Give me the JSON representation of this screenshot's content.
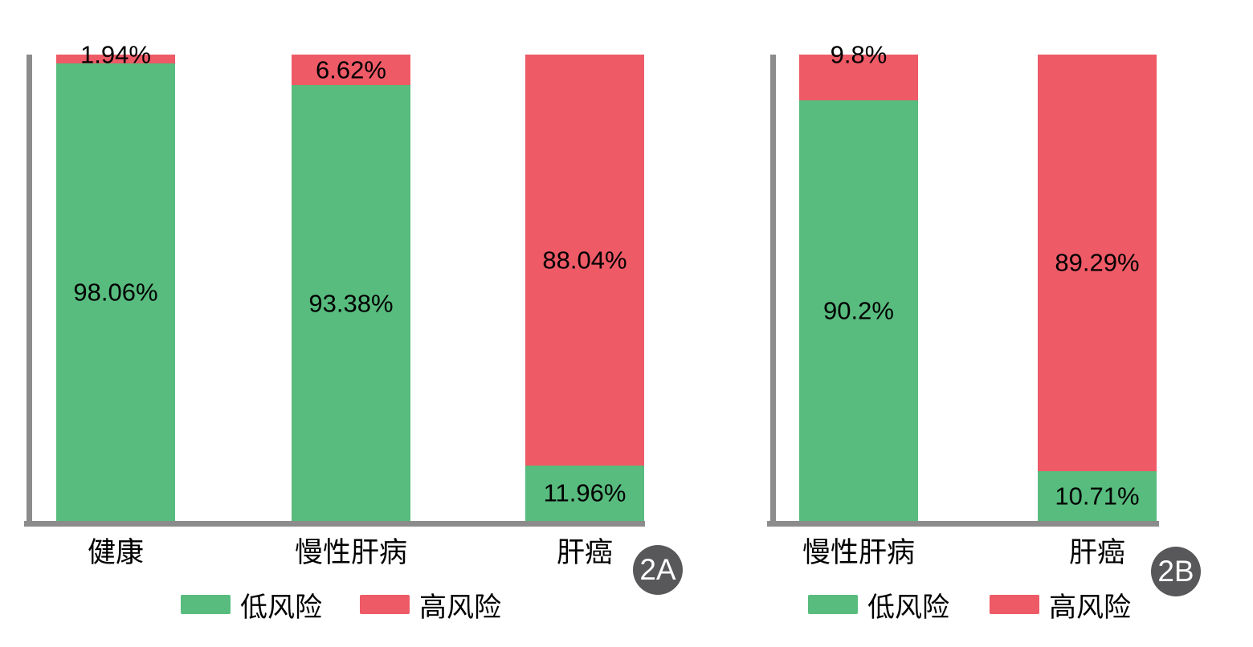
{
  "colors": {
    "low_risk": "#58bc7e",
    "high_risk": "#ee5a66",
    "axis": "#8c8c8c",
    "badge": "#58585a",
    "label_text": "#000000",
    "badge_text": "#ffffff"
  },
  "charts": [
    {
      "panel_label": "2A",
      "categories": [
        "健康",
        "慢性肝病",
        "肝癌"
      ],
      "legend": [
        {
          "label": "低风险",
          "color": "#58bc7e"
        },
        {
          "label": "高风险",
          "color": "#ee5a66"
        }
      ],
      "bars": [
        {
          "category": "健康",
          "segments": [
            {
              "series": "高风险",
              "value": 1.94,
              "label": "1.94%",
              "label_pos": "edge-top"
            },
            {
              "series": "低风险",
              "value": 98.06,
              "label": "98.06%",
              "label_pos": "center"
            }
          ]
        },
        {
          "category": "慢性肝病",
          "segments": [
            {
              "series": "高风险",
              "value": 6.62,
              "label": "6.62%",
              "label_pos": "center"
            },
            {
              "series": "低风险",
              "value": 93.38,
              "label": "93.38%",
              "label_pos": "center"
            }
          ]
        },
        {
          "category": "肝癌",
          "segments": [
            {
              "series": "高风险",
              "value": 88.04,
              "label": "88.04%",
              "label_pos": "center"
            },
            {
              "series": "低风险",
              "value": 11.96,
              "label": "11.96%",
              "label_pos": "center"
            }
          ]
        }
      ]
    },
    {
      "panel_label": "2B",
      "categories": [
        "慢性肝病",
        "肝癌"
      ],
      "legend": [
        {
          "label": "低风险",
          "color": "#58bc7e"
        },
        {
          "label": "高风险",
          "color": "#ee5a66"
        }
      ],
      "bars": [
        {
          "category": "慢性肝病",
          "segments": [
            {
              "series": "高风险",
              "value": 9.8,
              "label": "9.8%",
              "label_pos": "edge-top"
            },
            {
              "series": "低风险",
              "value": 90.2,
              "label": "90.2%",
              "label_pos": "center"
            }
          ]
        },
        {
          "category": "肝癌",
          "segments": [
            {
              "series": "高风险",
              "value": 89.29,
              "label": "89.29%",
              "label_pos": "center"
            },
            {
              "series": "低风险",
              "value": 10.71,
              "label": "10.71%",
              "label_pos": "center"
            }
          ]
        }
      ]
    }
  ],
  "chart_data": [
    {
      "type": "bar",
      "stacked": true,
      "panel": "2A",
      "categories": [
        "健康",
        "慢性肝病",
        "肝癌"
      ],
      "series": [
        {
          "name": "低风险",
          "color": "#58bc7e",
          "values": [
            98.06,
            93.38,
            11.96
          ]
        },
        {
          "name": "高风险",
          "color": "#ee5a66",
          "values": [
            1.94,
            6.62,
            88.04
          ]
        }
      ],
      "unit": "%",
      "ylim": [
        0,
        100
      ],
      "grid": false,
      "legend_position": "bottom",
      "axes_shown": [
        "left",
        "bottom"
      ]
    },
    {
      "type": "bar",
      "stacked": true,
      "panel": "2B",
      "categories": [
        "慢性肝病",
        "肝癌"
      ],
      "series": [
        {
          "name": "低风险",
          "color": "#58bc7e",
          "values": [
            90.2,
            10.71
          ]
        },
        {
          "name": "高风险",
          "color": "#ee5a66",
          "values": [
            9.8,
            89.29
          ]
        }
      ],
      "unit": "%",
      "ylim": [
        0,
        100
      ],
      "grid": false,
      "legend_position": "bottom",
      "axes_shown": [
        "left",
        "bottom"
      ]
    }
  ]
}
